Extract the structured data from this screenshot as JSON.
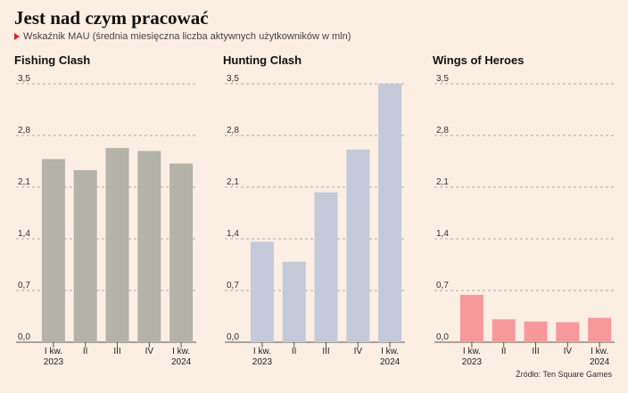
{
  "header": {
    "title": "Jest nad czym pracować",
    "subtitle": "Wskaźnik MAU (średnia miesięczna liczba aktywnych użytkowników w mln)",
    "source": "Źródło: Ten Square Games"
  },
  "chart_data": [
    {
      "type": "bar",
      "title": "Fishing Clash",
      "categories": [
        [
          "I kw.",
          "2023"
        ],
        [
          "II"
        ],
        [
          "III"
        ],
        [
          "IV"
        ],
        [
          "I kw.",
          "2024"
        ]
      ],
      "values": [
        2.48,
        2.33,
        2.63,
        2.59,
        2.42
      ],
      "ylim": [
        0,
        3.5
      ],
      "yticks": [
        "0,0",
        "0,7",
        "1,4",
        "2,1",
        "2,8",
        "3,5"
      ],
      "color": "#b4b3a9",
      "grid": true
    },
    {
      "type": "bar",
      "title": "Hunting Clash",
      "categories": [
        [
          "I kw.",
          "2023"
        ],
        [
          "II"
        ],
        [
          "III"
        ],
        [
          "IV"
        ],
        [
          "I kw.",
          "2024"
        ]
      ],
      "values": [
        1.36,
        1.09,
        2.03,
        2.61,
        3.5
      ],
      "ylim": [
        0,
        3.5
      ],
      "yticks": [
        "0,0",
        "0,7",
        "1,4",
        "2,1",
        "2,8",
        "3,5"
      ],
      "color": "#c4c9da",
      "grid": true
    },
    {
      "type": "bar",
      "title": "Wings of Heroes",
      "categories": [
        [
          "I kw.",
          "2023"
        ],
        [
          "II"
        ],
        [
          "III"
        ],
        [
          "IV"
        ],
        [
          "I kw.",
          "2024"
        ]
      ],
      "values": [
        0.64,
        0.31,
        0.28,
        0.27,
        0.33
      ],
      "ylim": [
        0,
        3.5
      ],
      "yticks": [
        "0,0",
        "0,7",
        "1,4",
        "2,1",
        "2,8",
        "3,5"
      ],
      "color": "#f7999b",
      "grid": true
    }
  ]
}
